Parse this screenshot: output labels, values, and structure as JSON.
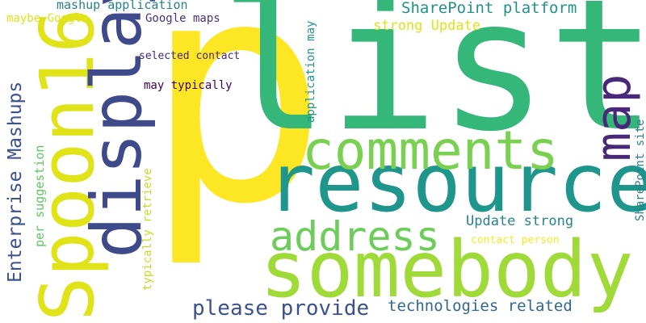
{
  "word_cloud": {
    "words": [
      {
        "text": "p",
        "color": "#fde725"
      },
      {
        "text": "list",
        "color": "#35b779"
      },
      {
        "text": "Spoon16",
        "color": "#dfe318"
      },
      {
        "text": "display",
        "color": "#3e4a89"
      },
      {
        "text": "resources",
        "color": "#1f968b"
      },
      {
        "text": "somebody",
        "color": "#a0da39"
      },
      {
        "text": "comments",
        "color": "#7ad151"
      },
      {
        "text": "map",
        "color": "#482878"
      },
      {
        "text": "address",
        "color": "#6ccd5a"
      },
      {
        "text": "Enterprise Mashups",
        "color": "#3b528b"
      },
      {
        "text": "please provide",
        "color": "#3b528b"
      },
      {
        "text": "technologies related",
        "color": "#31688e"
      },
      {
        "text": "SharePoint platform",
        "color": "#21918c"
      },
      {
        "text": "strong Update",
        "color": "#dfe318"
      },
      {
        "text": "Update strong",
        "color": "#26828e"
      },
      {
        "text": "contact person",
        "color": "#fde725"
      },
      {
        "text": "SharePoint site",
        "color": "#277f8e"
      },
      {
        "text": "mashup application",
        "color": "#26828e"
      },
      {
        "text": "maybe Google",
        "color": "#dfe318"
      },
      {
        "text": "Google maps",
        "color": "#46327e"
      },
      {
        "text": "selected contact",
        "color": "#482878"
      },
      {
        "text": "may typically",
        "color": "#440154"
      },
      {
        "text": "application may",
        "color": "#1f968b"
      },
      {
        "text": "per suggestion",
        "color": "#5ec962"
      },
      {
        "text": "typically retrieve",
        "color": "#c2df23"
      }
    ]
  }
}
